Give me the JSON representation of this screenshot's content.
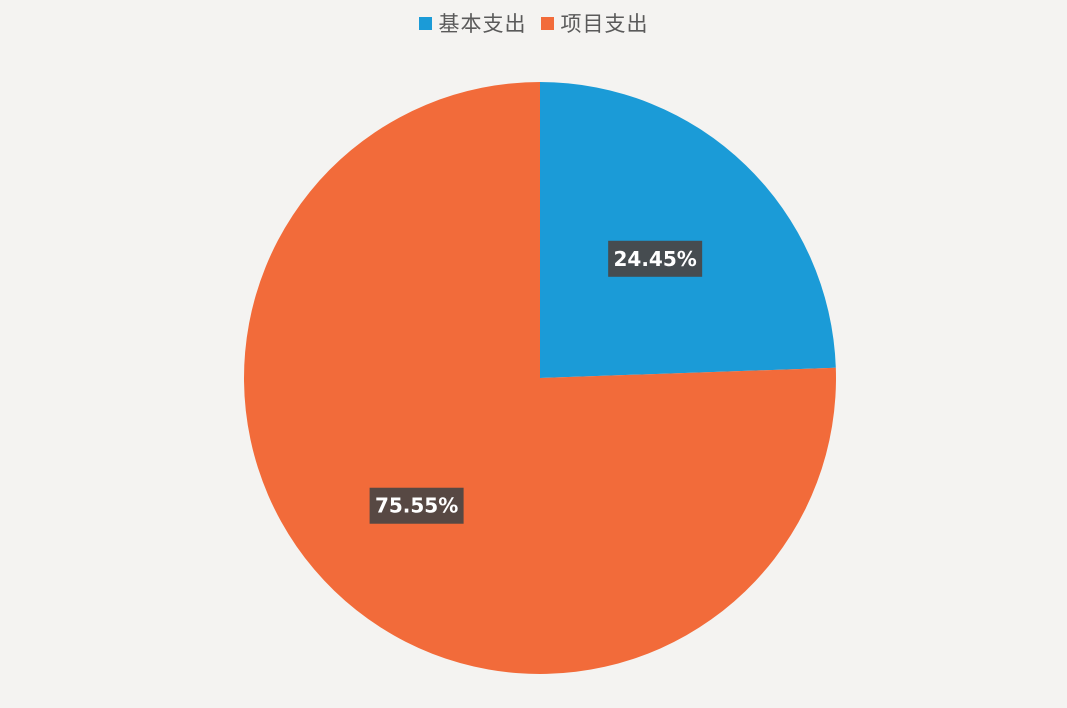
{
  "chart_data": {
    "type": "pie",
    "categories": [
      "基本支出",
      "项目支出"
    ],
    "values": [
      24.45,
      75.55
    ],
    "data_labels": [
      "24.45%",
      "75.55%"
    ],
    "colors": [
      "#1b9bd7",
      "#f26b3a"
    ],
    "legend_position": "top",
    "title": ""
  }
}
